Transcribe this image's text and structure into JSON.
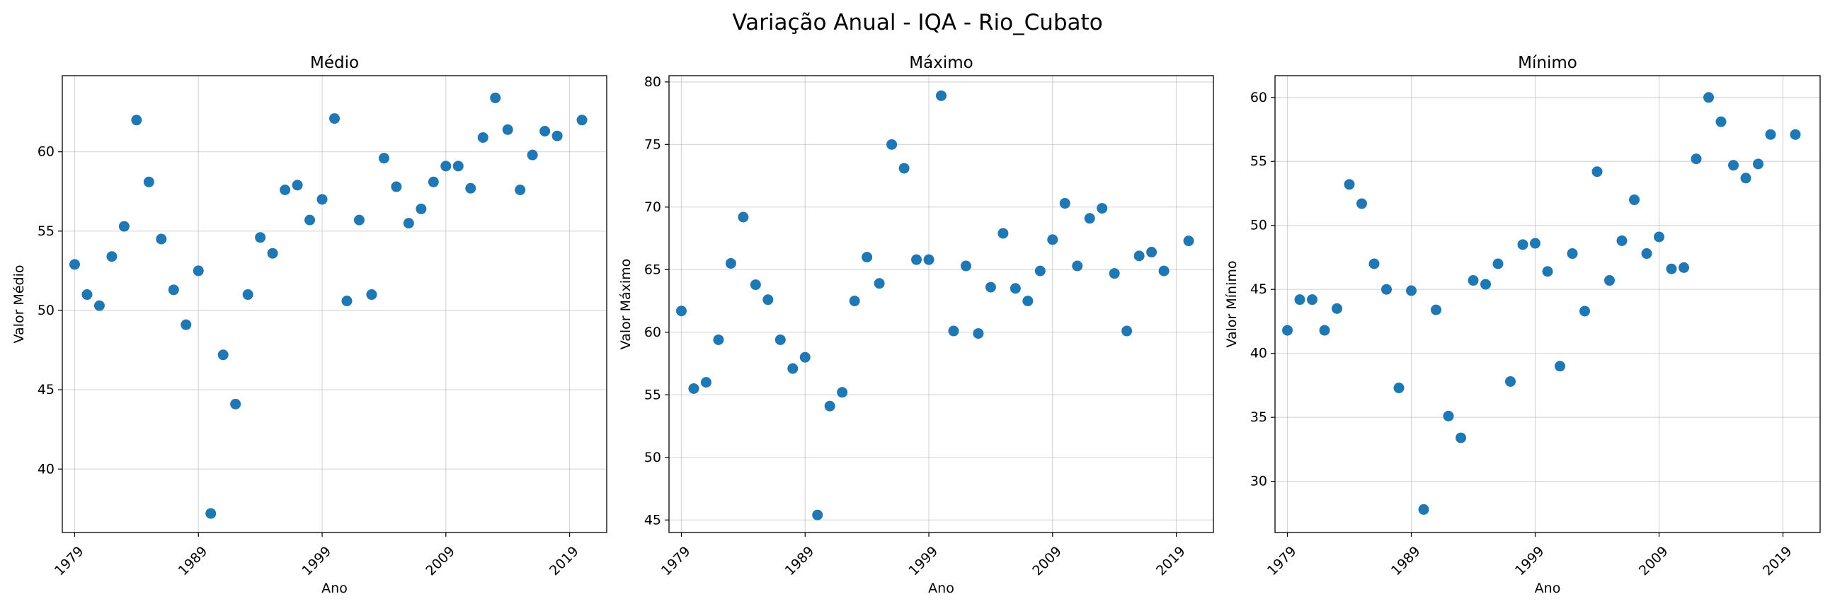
{
  "suptitle": "Variação Anual - IQA - Rio_Cubato",
  "chart_data": [
    {
      "type": "scatter",
      "title": "Médio",
      "xlabel": "Ano",
      "ylabel": "Valor Médio",
      "xlim": [
        1978,
        2022
      ],
      "ylim": [
        36,
        64.8
      ],
      "xticks": [
        1979,
        1989,
        1999,
        2009,
        2019
      ],
      "yticks": [
        40,
        45,
        50,
        55,
        60
      ],
      "grid": true,
      "color": "#1f77b4",
      "x": [
        1979,
        1980,
        1981,
        1982,
        1983,
        1984,
        1985,
        1986,
        1987,
        1988,
        1989,
        1990,
        1991,
        1992,
        1993,
        1994,
        1995,
        1996,
        1997,
        1998,
        1999,
        2000,
        2001,
        2002,
        2003,
        2004,
        2005,
        2006,
        2007,
        2008,
        2009,
        2010,
        2011,
        2012,
        2013,
        2014,
        2015,
        2016,
        2017,
        2018,
        2020
      ],
      "y": [
        52.9,
        51.0,
        50.3,
        53.4,
        55.3,
        62.0,
        58.1,
        54.5,
        51.3,
        49.1,
        52.5,
        37.2,
        47.2,
        44.1,
        51.0,
        54.6,
        53.6,
        57.6,
        57.9,
        55.7,
        57.0,
        62.1,
        50.6,
        55.7,
        51.0,
        59.6,
        57.8,
        55.5,
        56.4,
        58.1,
        59.1,
        59.1,
        57.7,
        60.9,
        63.4,
        61.4,
        57.6,
        59.8,
        61.3,
        61.0,
        62.0
      ]
    },
    {
      "type": "scatter",
      "title": "Máximo",
      "xlabel": "Ano",
      "ylabel": "Valor Máximo",
      "xlim": [
        1978,
        2022
      ],
      "ylim": [
        44,
        80.5
      ],
      "xticks": [
        1979,
        1989,
        1999,
        2009,
        2019
      ],
      "yticks": [
        45,
        50,
        55,
        60,
        65,
        70,
        75,
        80
      ],
      "grid": true,
      "color": "#1f77b4",
      "x": [
        1979,
        1980,
        1981,
        1982,
        1983,
        1984,
        1985,
        1986,
        1987,
        1988,
        1989,
        1990,
        1991,
        1992,
        1993,
        1994,
        1995,
        1996,
        1997,
        1998,
        1999,
        2000,
        2001,
        2002,
        2003,
        2004,
        2005,
        2006,
        2007,
        2008,
        2009,
        2010,
        2011,
        2012,
        2013,
        2014,
        2015,
        2016,
        2017,
        2018,
        2020
      ],
      "y": [
        61.7,
        55.5,
        56.0,
        59.4,
        65.5,
        69.2,
        63.8,
        62.6,
        59.4,
        57.1,
        58.0,
        45.4,
        54.1,
        55.2,
        62.5,
        66.0,
        63.9,
        75.0,
        73.1,
        65.8,
        65.8,
        78.9,
        60.1,
        65.3,
        59.9,
        63.6,
        67.9,
        63.5,
        62.5,
        64.9,
        67.4,
        70.3,
        65.3,
        69.1,
        69.9,
        64.7,
        60.1,
        66.1,
        66.4,
        64.9,
        67.3
      ]
    },
    {
      "type": "scatter",
      "title": "Mínimo",
      "xlabel": "Ano",
      "ylabel": "Valor Mínimo",
      "xlim": [
        1978,
        2022
      ],
      "ylim": [
        26,
        61.7
      ],
      "xticks": [
        1979,
        1989,
        1999,
        2009,
        2019
      ],
      "yticks": [
        30,
        35,
        40,
        45,
        50,
        55,
        60
      ],
      "grid": true,
      "color": "#1f77b4",
      "x": [
        1979,
        1980,
        1981,
        1982,
        1983,
        1984,
        1985,
        1986,
        1987,
        1988,
        1989,
        1990,
        1991,
        1992,
        1993,
        1994,
        1995,
        1996,
        1997,
        1998,
        1999,
        2000,
        2001,
        2002,
        2003,
        2004,
        2005,
        2006,
        2007,
        2008,
        2009,
        2010,
        2011,
        2012,
        2013,
        2014,
        2015,
        2016,
        2017,
        2018,
        2020
      ],
      "y": [
        41.8,
        44.2,
        44.2,
        41.8,
        43.5,
        53.2,
        51.7,
        47.0,
        45.0,
        37.3,
        44.9,
        27.8,
        43.4,
        35.1,
        33.4,
        45.7,
        45.4,
        47.0,
        37.8,
        48.5,
        48.6,
        46.4,
        39.0,
        47.8,
        43.3,
        54.2,
        45.7,
        48.8,
        52.0,
        47.8,
        49.1,
        46.6,
        46.7,
        55.2,
        60.0,
        58.1,
        54.7,
        53.7,
        54.8,
        57.1,
        57.1
      ]
    }
  ]
}
